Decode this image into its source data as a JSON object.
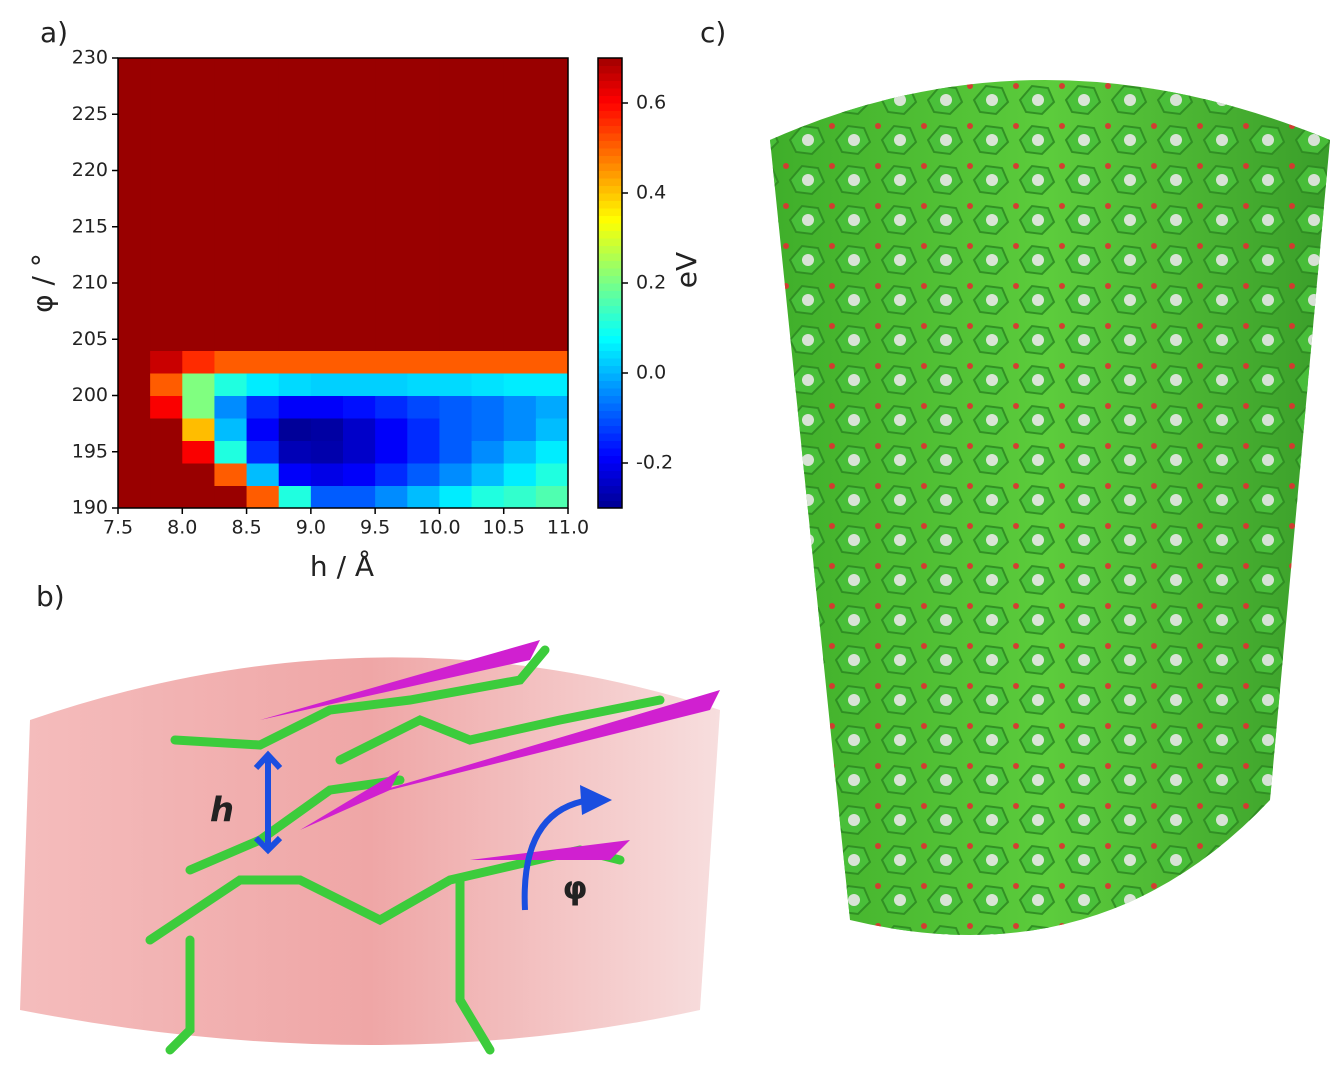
{
  "chart_data": {
    "type": "heatmap",
    "panel_labels": [
      "a)",
      "b)",
      "c)"
    ],
    "xlabel": "h / Å",
    "ylabel": "φ / °",
    "colorbar_label": "eV",
    "annotations": [
      "h",
      "φ"
    ],
    "xbins": [
      7.5,
      7.75,
      8.0,
      8.25,
      8.5,
      8.75,
      9.0,
      9.25,
      9.5,
      9.75,
      10.0,
      10.25,
      10.5,
      10.75,
      11.0
    ],
    "ybins": [
      190,
      192,
      194,
      196,
      198,
      200,
      202,
      204,
      230
    ],
    "values": [
      [
        0.7,
        0.7,
        0.7,
        0.7,
        0.5,
        0.1,
        -0.1,
        -0.1,
        -0.05,
        0,
        0.05,
        0.1,
        0.12,
        0.15
      ],
      [
        0.7,
        0.7,
        0.7,
        0.5,
        0.0,
        -0.2,
        -0.22,
        -0.2,
        -0.15,
        -0.1,
        -0.05,
        0.0,
        0.05,
        0.1
      ],
      [
        0.7,
        0.7,
        0.6,
        0.1,
        -0.15,
        -0.27,
        -0.28,
        -0.25,
        -0.2,
        -0.15,
        -0.1,
        -0.05,
        0.0,
        0.05
      ],
      [
        0.7,
        0.7,
        0.4,
        0.0,
        -0.2,
        -0.3,
        -0.29,
        -0.25,
        -0.2,
        -0.15,
        -0.1,
        -0.08,
        -0.05,
        0.0
      ],
      [
        0.7,
        0.6,
        0.2,
        -0.05,
        -0.15,
        -0.2,
        -0.2,
        -0.18,
        -0.15,
        -0.12,
        -0.1,
        -0.08,
        -0.05,
        -0.02
      ],
      [
        0.7,
        0.5,
        0.2,
        0.1,
        0.05,
        0.03,
        0.02,
        0.02,
        0.02,
        0.03,
        0.03,
        0.04,
        0.05,
        0.05
      ],
      [
        0.7,
        0.65,
        0.55,
        0.5,
        0.5,
        0.5,
        0.5,
        0.5,
        0.5,
        0.5,
        0.5,
        0.5,
        0.5,
        0.5
      ],
      [
        0.7,
        0.7,
        0.7,
        0.7,
        0.7,
        0.7,
        0.7,
        0.7,
        0.7,
        0.7,
        0.7,
        0.7,
        0.7,
        0.7
      ]
    ],
    "colormap": "jet",
    "xlim": [
      7.5,
      11.0
    ],
    "ylim": [
      190,
      230
    ],
    "zlim": [
      -0.3,
      0.7
    ],
    "xticks": [
      7.5,
      {
        "value": 8,
        "label": "8.0"
      },
      8.5,
      {
        "value": 9,
        "label": "9.0"
      },
      9.5,
      {
        "value": 10,
        "label": "10.0"
      },
      10.5,
      {
        "value": 11,
        "label": "11.0"
      }
    ],
    "yticks": [
      190,
      195,
      200,
      205,
      210,
      215,
      220,
      225,
      230
    ],
    "zticks": [
      -0.2,
      {
        "value": 0,
        "label": "0.0"
      },
      0.2,
      0.4,
      0.6
    ]
  }
}
